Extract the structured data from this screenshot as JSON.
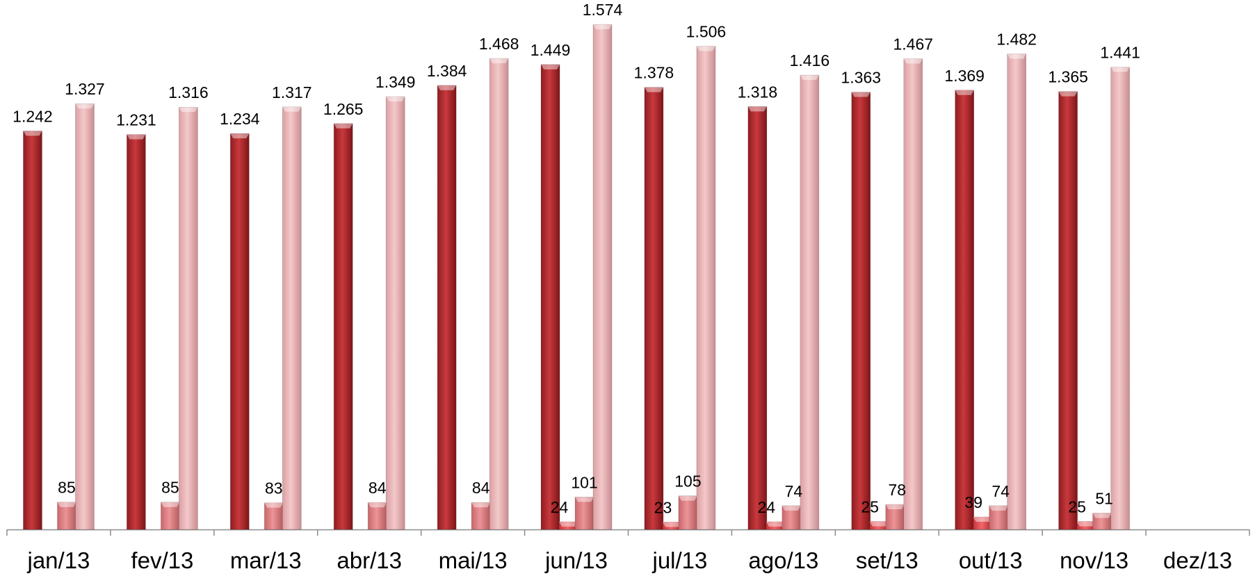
{
  "chart_data": {
    "type": "bar",
    "categories": [
      "jan/13",
      "fev/13",
      "mar/13",
      "abr/13",
      "mai/13",
      "jun/13",
      "jul/13",
      "ago/13",
      "set/13",
      "out/13",
      "nov/13",
      "dez/13"
    ],
    "series": [
      {
        "color": "#b32a2e",
        "values": [
          1242,
          1231,
          1234,
          1265,
          1384,
          1449,
          1378,
          1318,
          1363,
          1369,
          1365,
          null
        ],
        "labels": [
          "1.242",
          "1.231",
          "1.234",
          "1.265",
          "1.384",
          "1.449",
          "1.378",
          "1.318",
          "1.363",
          "1.369",
          "1.365",
          ""
        ]
      },
      {
        "color": "#e25458",
        "values": [
          null,
          null,
          null,
          null,
          null,
          24,
          23,
          24,
          25,
          39,
          25,
          null
        ],
        "labels": [
          "",
          "",
          "",
          "",
          "",
          "24",
          "23",
          "24",
          "25",
          "39",
          "25",
          ""
        ]
      },
      {
        "color": "#dc7a7e",
        "values": [
          85,
          85,
          83,
          84,
          84,
          101,
          105,
          74,
          78,
          74,
          51,
          null
        ],
        "labels": [
          "85",
          "85",
          "83",
          "84",
          "84",
          "101",
          "105",
          "74",
          "78",
          "74",
          "51",
          ""
        ]
      },
      {
        "color": "#e8b1b3",
        "values": [
          1327,
          1316,
          1317,
          1349,
          1468,
          1574,
          1506,
          1416,
          1467,
          1482,
          1441,
          null
        ],
        "labels": [
          "1.327",
          "1.316",
          "1.317",
          "1.349",
          "1.468",
          "1.574",
          "1.506",
          "1.416",
          "1.467",
          "1.482",
          "1.441",
          ""
        ]
      }
    ],
    "ylim": [
      0,
      1650
    ],
    "grid": false,
    "legend": "none"
  }
}
